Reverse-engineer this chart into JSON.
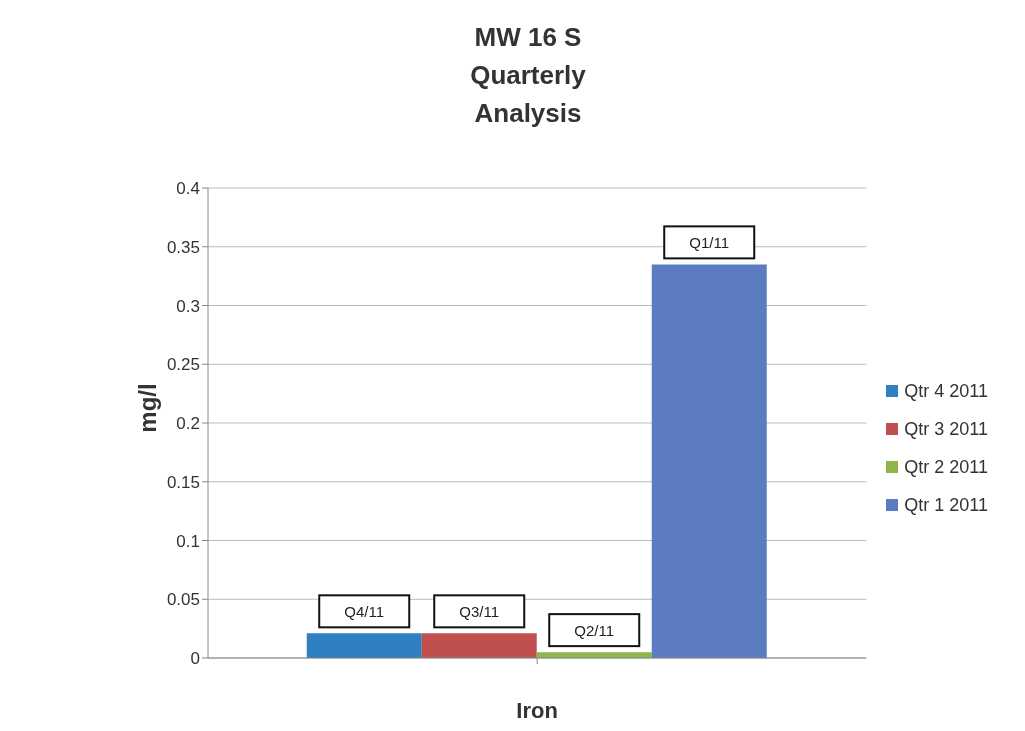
{
  "chart_data": {
    "type": "bar",
    "title": "MW 16 S Quarterly Analysis",
    "xlabel": "Iron",
    "ylabel": "mg/l",
    "categories": [
      null
    ],
    "series": [
      {
        "name": "Qtr 4 2011",
        "color": "#2f7fc1",
        "values": [
          0.021
        ],
        "value_labels": [
          "Q4/11"
        ]
      },
      {
        "name": "Qtr 3 2011",
        "color": "#c0504d",
        "values": [
          0.021
        ],
        "value_labels": [
          "Q3/11"
        ]
      },
      {
        "name": "Qtr 2 2011",
        "color": "#8db54a",
        "values": [
          0.005
        ],
        "value_labels": [
          "Q2/11"
        ]
      },
      {
        "name": "Qtr 1 2011",
        "color": "#5b7cc0",
        "values": [
          0.335
        ],
        "value_labels": [
          "Q1/11"
        ]
      }
    ],
    "ylim": [
      0,
      0.4
    ],
    "yticks": [
      0,
      0.05,
      0.1,
      0.15,
      0.2,
      0.25,
      0.3,
      0.35,
      0.4
    ],
    "grid": "y",
    "legend": "right"
  }
}
